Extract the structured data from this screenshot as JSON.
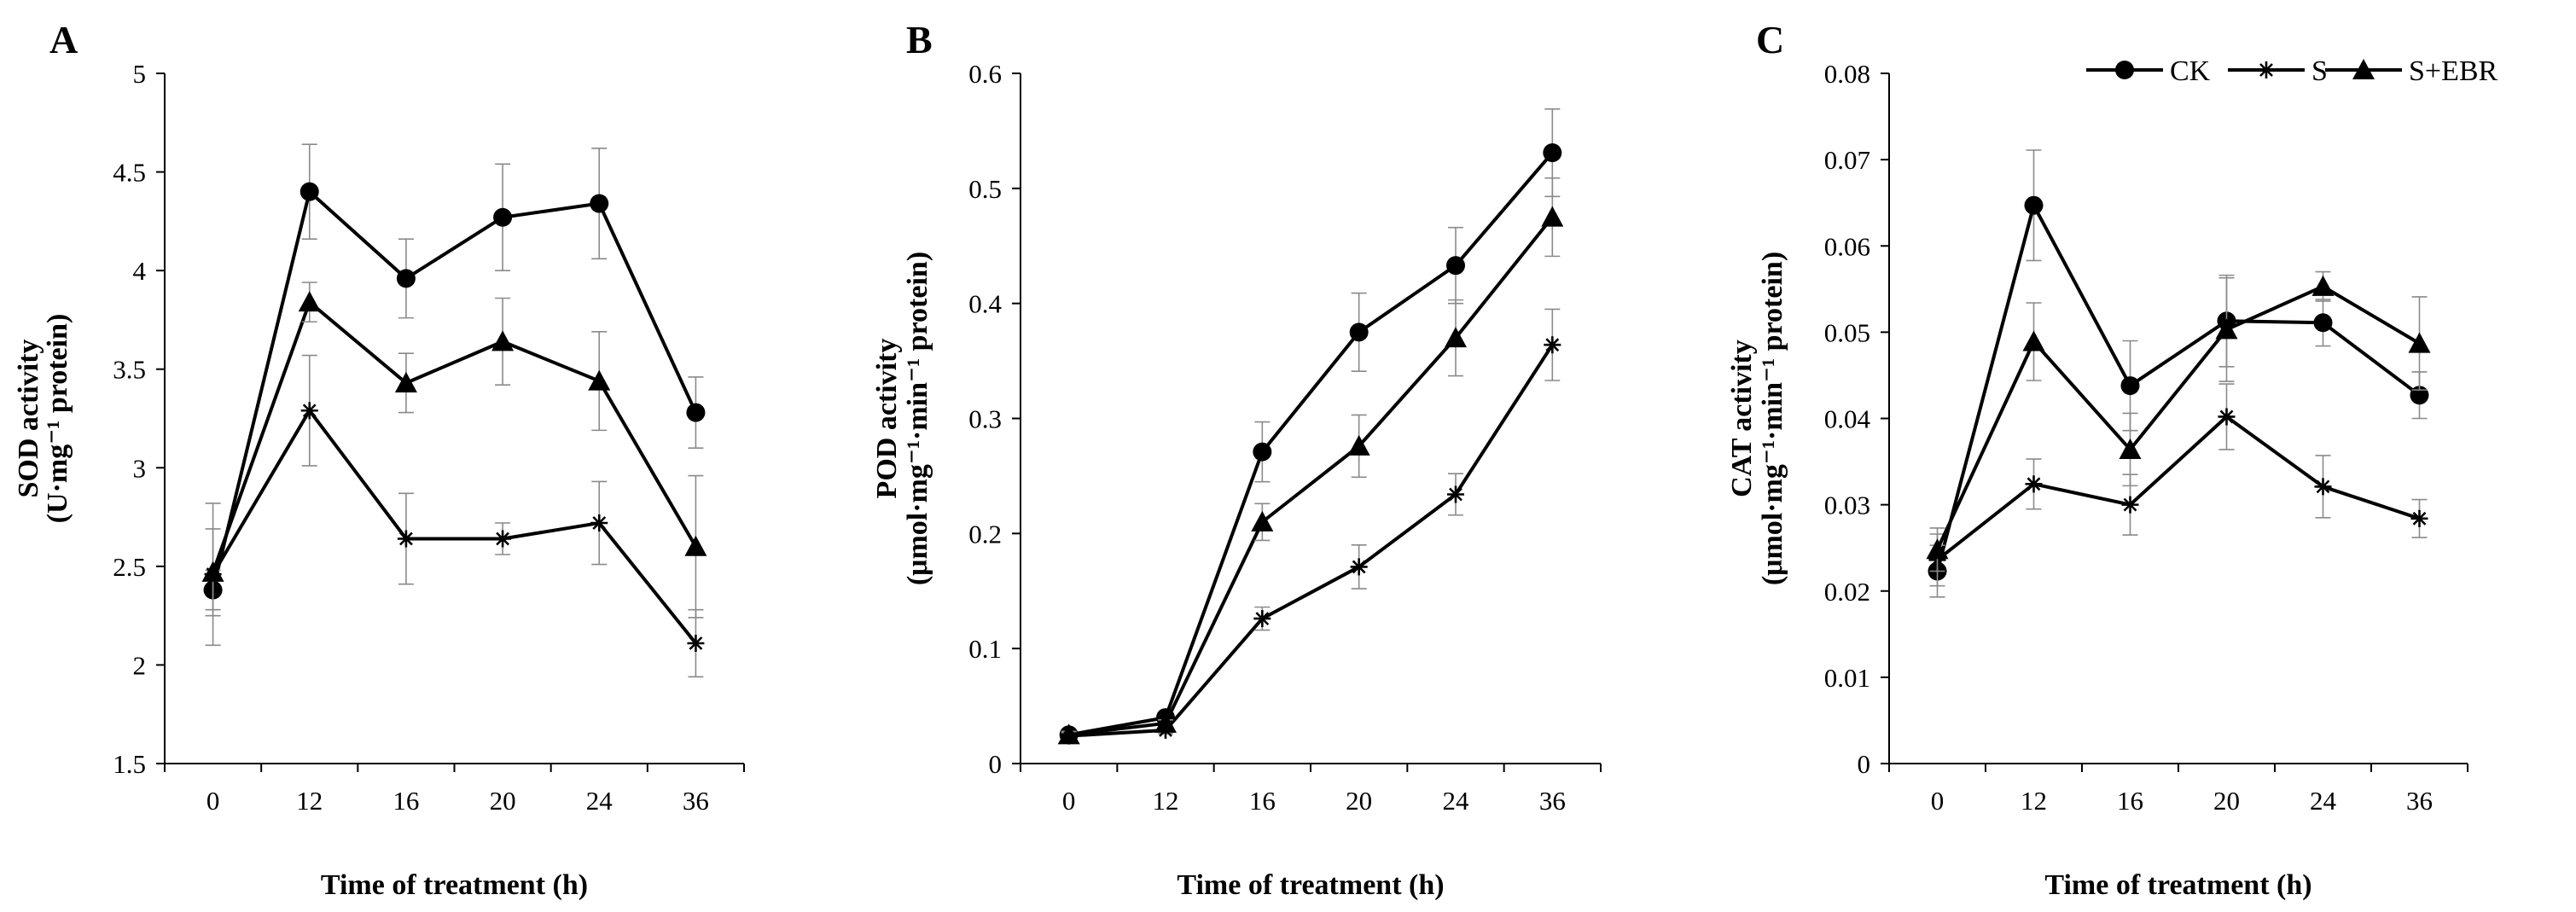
{
  "chart_data": [
    {
      "type": "line",
      "panel_label": "A",
      "title": "",
      "xlabel": "Time of treatment (h)",
      "ylabel_line1": "SOD activity",
      "ylabel_line2": "(U·mg⁻¹ protein)",
      "categories": [
        "0",
        "12",
        "16",
        "20",
        "24",
        "36"
      ],
      "ylim": [
        1.5,
        5
      ],
      "yticks": [
        1.5,
        2,
        2.5,
        3,
        3.5,
        4,
        4.5,
        5
      ],
      "ytick_labels": [
        "1.5",
        "2",
        "2.5",
        "3",
        "3.5",
        "4",
        "4.5",
        "5"
      ],
      "series": [
        {
          "name": "CK",
          "marker": "circle",
          "values": [
            2.38,
            4.4,
            3.96,
            4.27,
            4.34,
            3.28
          ],
          "errors": [
            0.1,
            0.24,
            0.2,
            0.27,
            0.28,
            0.18
          ]
        },
        {
          "name": "S",
          "marker": "asterisk",
          "values": [
            2.46,
            3.29,
            2.64,
            2.64,
            2.72,
            2.11
          ],
          "errors": [
            0.36,
            0.28,
            0.23,
            0.08,
            0.21,
            0.17
          ]
        },
        {
          "name": "S+EBR",
          "marker": "triangle",
          "values": [
            2.47,
            3.84,
            3.43,
            3.64,
            3.44,
            2.6
          ],
          "errors": [
            0.22,
            0.1,
            0.15,
            0.22,
            0.25,
            0.36
          ]
        }
      ]
    },
    {
      "type": "line",
      "panel_label": "B",
      "title": "",
      "xlabel": "Time of treatment (h)",
      "ylabel_line1": "POD activity",
      "ylabel_line2": "(μmol·mg⁻¹·min⁻¹ protein)",
      "categories": [
        "0",
        "12",
        "16",
        "20",
        "24",
        "36"
      ],
      "ylim": [
        0,
        0.6
      ],
      "yticks": [
        0,
        0.1,
        0.2,
        0.3,
        0.4,
        0.5,
        0.6
      ],
      "ytick_labels": [
        "0",
        "0.1",
        "0.2",
        "0.3",
        "0.4",
        "0.5",
        "0.6"
      ],
      "series": [
        {
          "name": "CK",
          "marker": "circle",
          "values": [
            0.025,
            0.04,
            0.271,
            0.375,
            0.433,
            0.531
          ],
          "errors": [
            0.004,
            0.004,
            0.026,
            0.034,
            0.033,
            0.038
          ]
        },
        {
          "name": "S",
          "marker": "asterisk",
          "values": [
            0.024,
            0.029,
            0.126,
            0.171,
            0.234,
            0.364
          ],
          "errors": [
            0.003,
            0.003,
            0.01,
            0.019,
            0.018,
            0.031
          ]
        },
        {
          "name": "S+EBR",
          "marker": "triangle",
          "values": [
            0.025,
            0.035,
            0.21,
            0.276,
            0.37,
            0.475
          ],
          "errors": [
            0.003,
            0.003,
            0.016,
            0.027,
            0.033,
            0.034
          ]
        }
      ]
    },
    {
      "type": "line",
      "panel_label": "C",
      "title": "",
      "xlabel": "Time of treatment (h)",
      "ylabel_line1": "CAT activity",
      "ylabel_line2": "(μmol·mg⁻¹·min⁻¹ protein)",
      "categories": [
        "0",
        "12",
        "16",
        "20",
        "24",
        "36"
      ],
      "ylim": [
        0,
        0.08
      ],
      "yticks": [
        0,
        0.01,
        0.02,
        0.03,
        0.04,
        0.05,
        0.06,
        0.07,
        0.08
      ],
      "ytick_labels": [
        "0",
        "0.01",
        "0.02",
        "0.03",
        "0.04",
        "0.05",
        "0.06",
        "0.07",
        "0.08"
      ],
      "legend": {
        "position": "top-right",
        "entries": [
          "CK",
          "S",
          "S+EBR"
        ]
      },
      "series": [
        {
          "name": "CK",
          "marker": "circle",
          "values": [
            0.0223,
            0.0647,
            0.0438,
            0.0513,
            0.0511,
            0.0427
          ],
          "errors": [
            0.003,
            0.0064,
            0.0052,
            0.0053,
            0.0027,
            0.0027
          ]
        },
        {
          "name": "S",
          "marker": "asterisk",
          "values": [
            0.0236,
            0.0324,
            0.03,
            0.0402,
            0.0321,
            0.0284
          ],
          "errors": [
            0.003,
            0.0029,
            0.0035,
            0.0038,
            0.0036,
            0.0022
          ]
        },
        {
          "name": "S+EBR",
          "marker": "triangle",
          "values": [
            0.0248,
            0.0489,
            0.0364,
            0.0503,
            0.0553,
            0.0487
          ],
          "errors": [
            0.0025,
            0.0045,
            0.0042,
            0.006,
            0.0017,
            0.0054
          ]
        }
      ]
    }
  ]
}
